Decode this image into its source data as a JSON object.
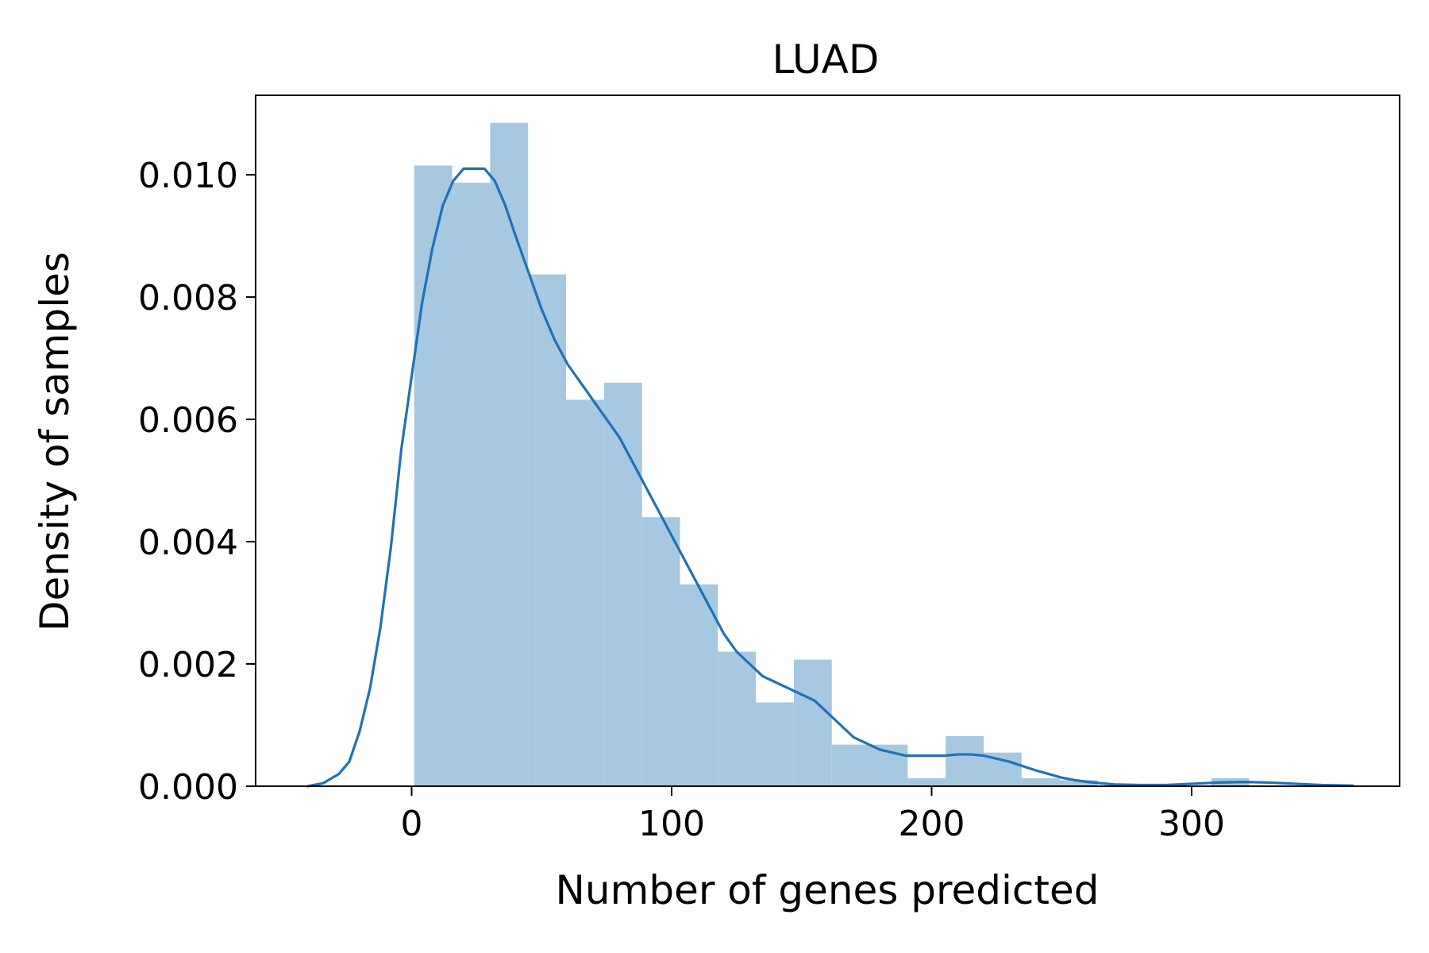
{
  "chart_data": {
    "type": "histogram",
    "title": "LUAD",
    "xlabel": "Number of genes predicted",
    "ylabel": "Density of samples",
    "xlim": [
      -60,
      380
    ],
    "ylim": [
      0,
      0.0113
    ],
    "x_ticks": [
      0,
      100,
      200,
      300
    ],
    "x_tick_labels": [
      "0",
      "100",
      "200",
      "300"
    ],
    "y_ticks": [
      0,
      0.002,
      0.004,
      0.006,
      0.008,
      0.01
    ],
    "y_tick_labels": [
      "0.000",
      "0.002",
      "0.004",
      "0.006",
      "0.008",
      "0.010"
    ],
    "grid": false,
    "legend": "none",
    "colors": {
      "bar": "#a6c8e0",
      "kde": "#2171b5",
      "axis": "#000000"
    },
    "bins": [
      {
        "x0": 1,
        "x1": 15.6,
        "density": 0.01015
      },
      {
        "x0": 15.6,
        "x1": 30.2,
        "density": 0.00987
      },
      {
        "x0": 30.2,
        "x1": 44.8,
        "density": 0.01085
      },
      {
        "x0": 44.8,
        "x1": 59.4,
        "density": 0.00837
      },
      {
        "x0": 59.4,
        "x1": 74.0,
        "density": 0.00632
      },
      {
        "x0": 74.0,
        "x1": 88.6,
        "density": 0.0066
      },
      {
        "x0": 88.6,
        "x1": 103.2,
        "density": 0.0044
      },
      {
        "x0": 103.2,
        "x1": 117.8,
        "density": 0.0033
      },
      {
        "x0": 117.8,
        "x1": 132.4,
        "density": 0.0022
      },
      {
        "x0": 132.4,
        "x1": 147.0,
        "density": 0.00137
      },
      {
        "x0": 147.0,
        "x1": 161.6,
        "density": 0.00207
      },
      {
        "x0": 161.6,
        "x1": 176.2,
        "density": 0.00068
      },
      {
        "x0": 176.2,
        "x1": 190.8,
        "density": 0.00068
      },
      {
        "x0": 190.8,
        "x1": 205.4,
        "density": 0.00013
      },
      {
        "x0": 205.4,
        "x1": 220.0,
        "density": 0.00082
      },
      {
        "x0": 220.0,
        "x1": 234.6,
        "density": 0.00055
      },
      {
        "x0": 234.6,
        "x1": 249.2,
        "density": 0.00013
      },
      {
        "x0": 249.2,
        "x1": 263.8,
        "density": 0.0001
      },
      {
        "x0": 263.8,
        "x1": 278.4,
        "density": 0
      },
      {
        "x0": 278.4,
        "x1": 293.0,
        "density": 0
      },
      {
        "x0": 293.0,
        "x1": 307.6,
        "density": 0
      },
      {
        "x0": 307.6,
        "x1": 322.2,
        "density": 0.00013
      },
      {
        "x0": 322.2,
        "x1": 336.8,
        "density": 0
      }
    ],
    "kde": {
      "x": [
        -40,
        -34,
        -28,
        -24,
        -20,
        -16,
        -12,
        -8,
        -4,
        0,
        4,
        8,
        12,
        16,
        20,
        24,
        28,
        32,
        36,
        40,
        45,
        50,
        55,
        60,
        65,
        70,
        75,
        80,
        85,
        90,
        95,
        100,
        105,
        110,
        115,
        120,
        125,
        130,
        135,
        140,
        145,
        150,
        155,
        160,
        165,
        170,
        175,
        180,
        185,
        190,
        195,
        200,
        205,
        210,
        215,
        220,
        225,
        230,
        235,
        240,
        245,
        250,
        255,
        260,
        270,
        280,
        290,
        300,
        310,
        320,
        330,
        340,
        350,
        362
      ],
      "y": [
        0,
        5e-05,
        0.0002,
        0.0004,
        0.0009,
        0.0016,
        0.0026,
        0.0039,
        0.0055,
        0.0067,
        0.0079,
        0.0088,
        0.0095,
        0.0099,
        0.0101,
        0.0101,
        0.0101,
        0.0099,
        0.0095,
        0.009,
        0.0084,
        0.0078,
        0.0073,
        0.0069,
        0.0066,
        0.0063,
        0.006,
        0.0057,
        0.0053,
        0.0049,
        0.0045,
        0.0041,
        0.0037,
        0.0033,
        0.0029,
        0.0025,
        0.0022,
        0.002,
        0.0018,
        0.0017,
        0.0016,
        0.0015,
        0.0014,
        0.0012,
        0.001,
        0.0008,
        0.0007,
        0.0006,
        0.00055,
        0.0005,
        0.0005,
        0.0005,
        0.0005,
        0.00052,
        0.00052,
        0.0005,
        0.00045,
        0.0004,
        0.00033,
        0.00026,
        0.0002,
        0.00014,
        0.0001,
        7e-05,
        3e-05,
        2e-05,
        2e-05,
        4e-05,
        6e-05,
        7e-05,
        6e-05,
        4e-05,
        2e-05,
        1e-05
      ]
    }
  }
}
